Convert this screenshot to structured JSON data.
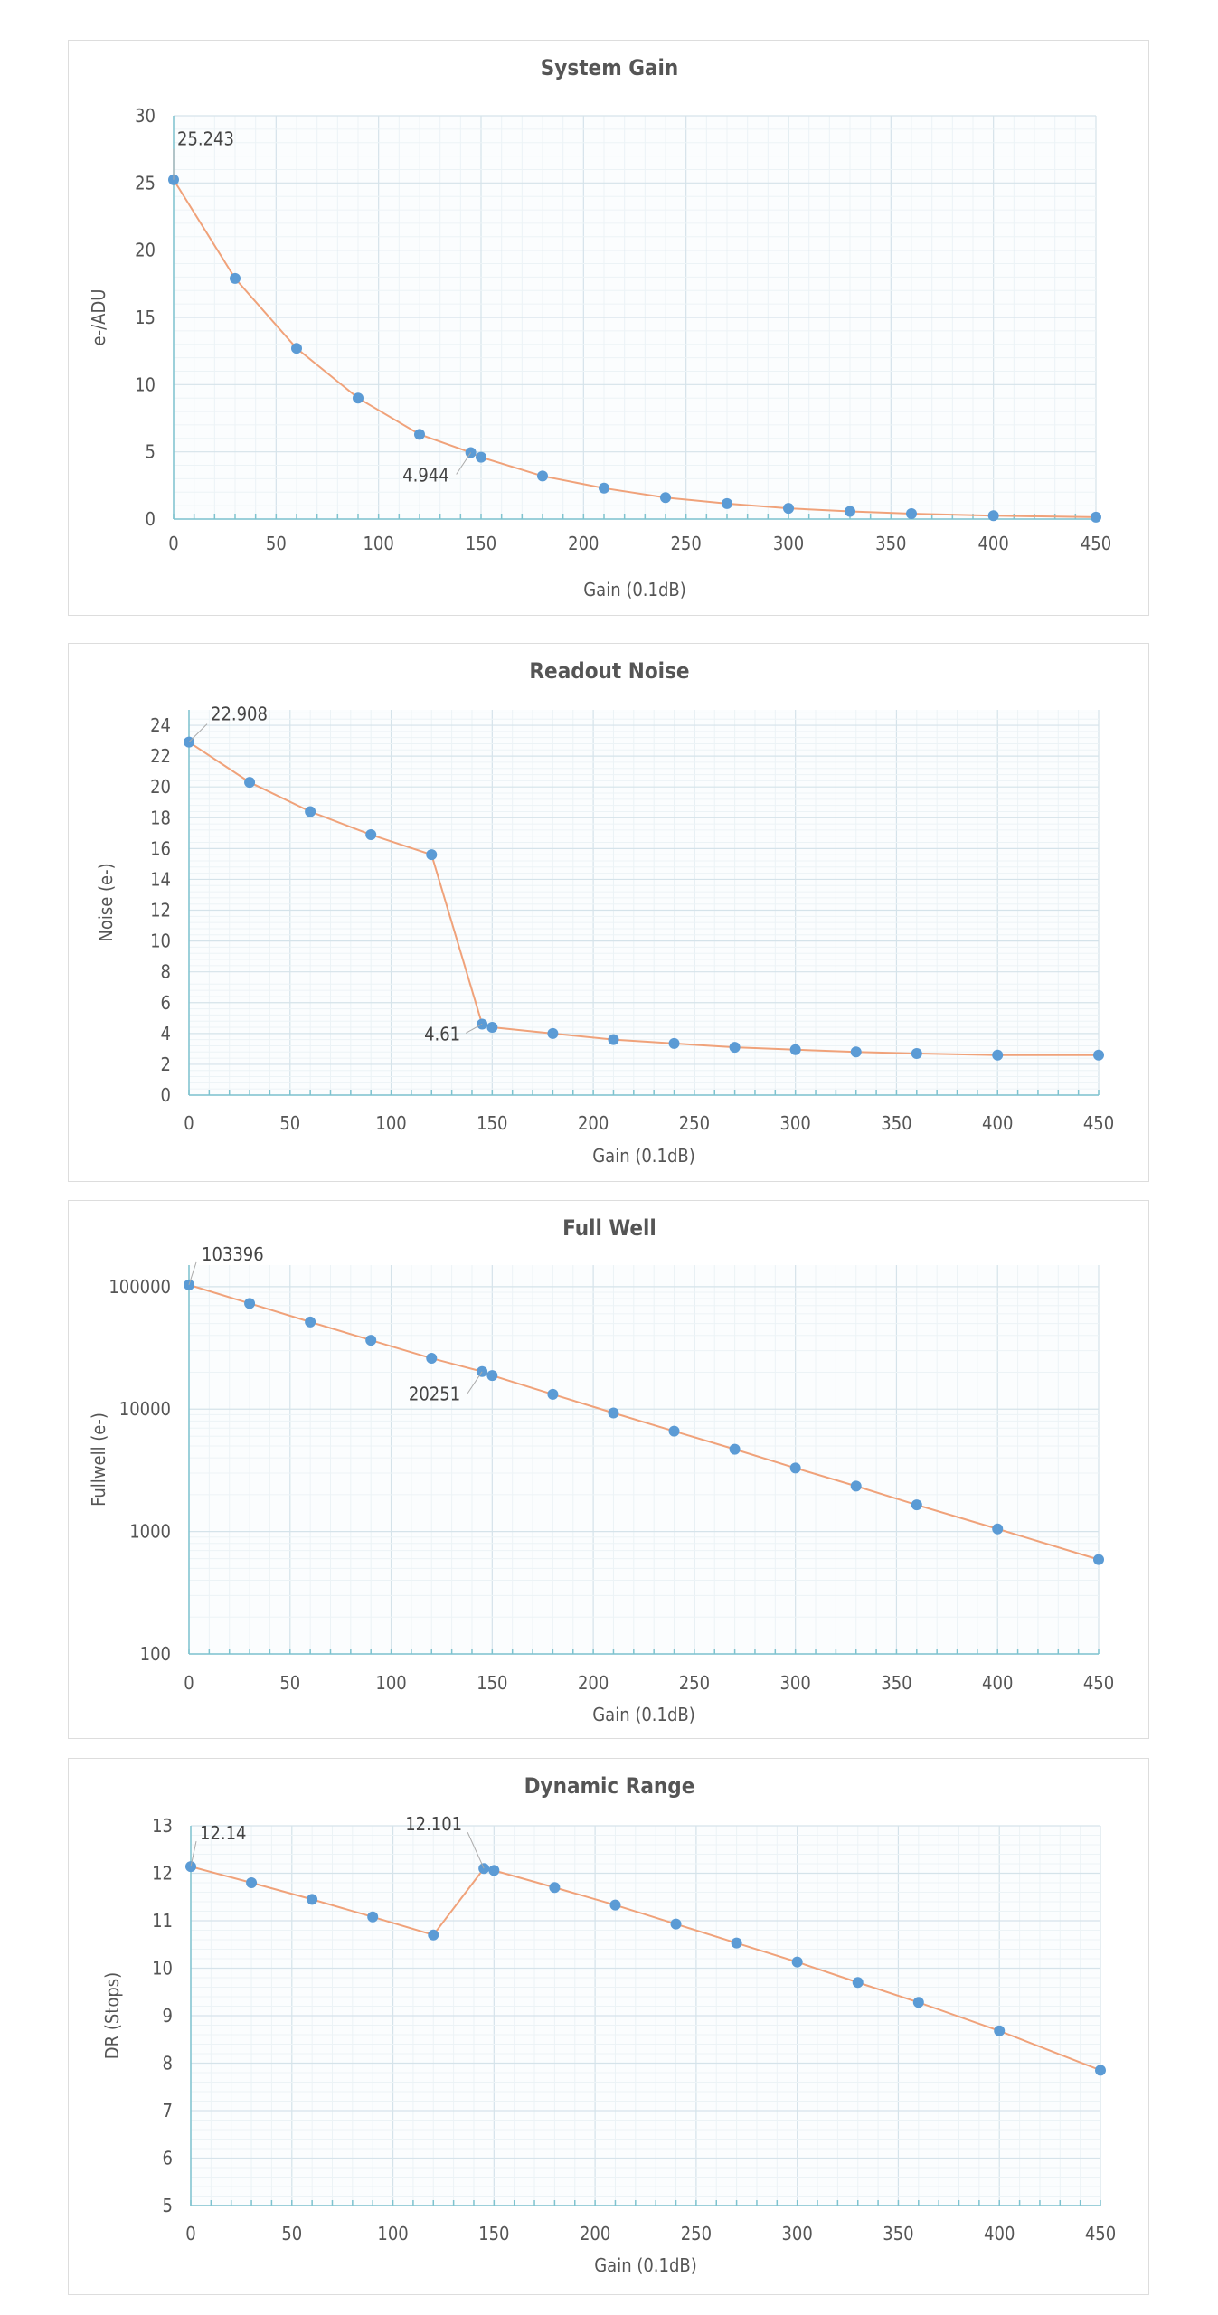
{
  "style": {
    "line_color": "#f0a27a",
    "marker_color": "#5b9bd5",
    "grid_major": "#d5e3ea",
    "grid_minor": "#ecf3f6",
    "tick_color": "#7fc3cf"
  },
  "chart_data": [
    {
      "type": "line",
      "title": "System Gain",
      "xlabel": "Gain (0.1dB)",
      "ylabel": "e-/ADU",
      "xlim": [
        0,
        450
      ],
      "ylim": [
        0,
        30
      ],
      "xticks": [
        0,
        50,
        100,
        150,
        200,
        250,
        300,
        350,
        400,
        450
      ],
      "yticks": [
        0,
        5,
        10,
        15,
        20,
        25,
        30
      ],
      "grid": true,
      "y_scale": "linear",
      "series": [
        {
          "x": [
            0,
            30,
            60,
            90,
            120,
            145,
            150,
            180,
            210,
            240,
            270,
            300,
            330,
            360,
            400,
            450
          ],
          "y": [
            25.243,
            17.9,
            12.7,
            9.0,
            6.3,
            4.944,
            4.6,
            3.2,
            2.3,
            1.6,
            1.15,
            0.8,
            0.57,
            0.4,
            0.25,
            0.14
          ]
        }
      ],
      "annotations": [
        {
          "text": "25.243",
          "x": 0,
          "y": 25.243
        },
        {
          "text": "4.944",
          "x": 145,
          "y": 4.944
        }
      ]
    },
    {
      "type": "line",
      "title": "Readout Noise",
      "xlabel": "Gain (0.1dB)",
      "ylabel": "Noise (e-)",
      "xlim": [
        0,
        450
      ],
      "ylim": [
        0,
        25
      ],
      "xticks": [
        0,
        50,
        100,
        150,
        200,
        250,
        300,
        350,
        400,
        450
      ],
      "yticks": [
        0,
        2,
        4,
        6,
        8,
        10,
        12,
        14,
        16,
        18,
        20,
        22,
        24
      ],
      "grid": true,
      "y_scale": "linear",
      "series": [
        {
          "x": [
            0,
            30,
            60,
            90,
            120,
            145,
            150,
            180,
            210,
            240,
            270,
            300,
            330,
            360,
            400,
            450
          ],
          "y": [
            22.908,
            20.3,
            18.4,
            16.9,
            15.6,
            4.61,
            4.4,
            4.0,
            3.6,
            3.35,
            3.1,
            2.95,
            2.8,
            2.7,
            2.6,
            2.6
          ]
        }
      ],
      "annotations": [
        {
          "text": "22.908",
          "x": 0,
          "y": 22.908
        },
        {
          "text": "4.61",
          "x": 145,
          "y": 4.61
        }
      ]
    },
    {
      "type": "line",
      "title": "Full Well",
      "xlabel": "Gain (0.1dB)",
      "ylabel": "Fullwell (e-)",
      "xlim": [
        0,
        450
      ],
      "ylim": [
        100,
        150000
      ],
      "xticks": [
        0,
        50,
        100,
        150,
        200,
        250,
        300,
        350,
        400,
        450
      ],
      "yticks": [
        100,
        1000,
        10000,
        100000
      ],
      "grid": true,
      "y_scale": "log",
      "series": [
        {
          "x": [
            0,
            30,
            60,
            90,
            120,
            145,
            150,
            180,
            210,
            240,
            270,
            300,
            330,
            360,
            400,
            450
          ],
          "y": [
            103396,
            73000,
            51500,
            36500,
            26000,
            20251,
            18800,
            13200,
            9300,
            6600,
            4700,
            3300,
            2350,
            1650,
            1050,
            590
          ]
        }
      ],
      "annotations": [
        {
          "text": "103396",
          "x": 0,
          "y": 103396
        },
        {
          "text": "20251",
          "x": 145,
          "y": 20251
        }
      ]
    },
    {
      "type": "line",
      "title": "Dynamic Range",
      "xlabel": "Gain (0.1dB)",
      "ylabel": "DR (Stops)",
      "xlim": [
        0,
        450
      ],
      "ylim": [
        5,
        13
      ],
      "xticks": [
        0,
        50,
        100,
        150,
        200,
        250,
        300,
        350,
        400,
        450
      ],
      "yticks": [
        5,
        6,
        7,
        8,
        9,
        10,
        11,
        12,
        13
      ],
      "grid": true,
      "y_scale": "linear",
      "series": [
        {
          "x": [
            0,
            30,
            60,
            90,
            120,
            145,
            150,
            180,
            210,
            240,
            270,
            300,
            330,
            360,
            400,
            450
          ],
          "y": [
            12.14,
            11.8,
            11.45,
            11.08,
            10.7,
            12.101,
            12.06,
            11.7,
            11.33,
            10.93,
            10.53,
            10.13,
            9.7,
            9.28,
            8.68,
            7.85
          ]
        }
      ],
      "annotations": [
        {
          "text": "12.14",
          "x": 0,
          "y": 12.14
        },
        {
          "text": "12.101",
          "x": 145,
          "y": 12.101
        }
      ]
    }
  ]
}
